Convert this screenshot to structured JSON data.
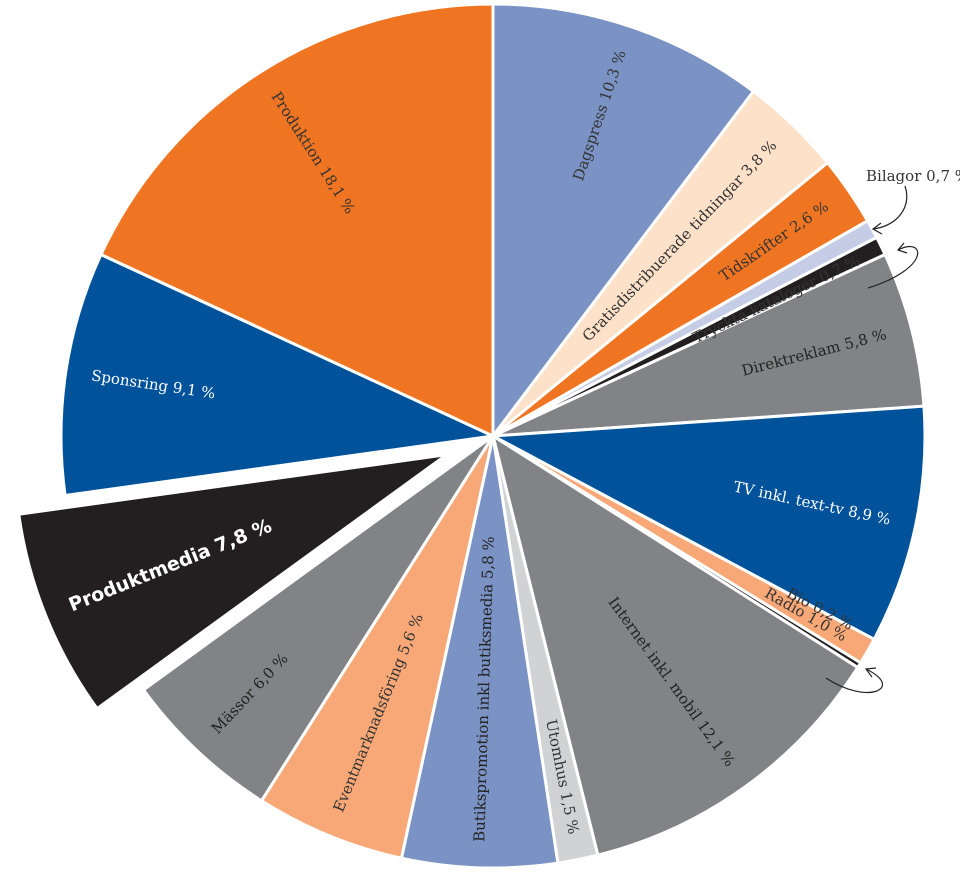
{
  "chart_data": {
    "type": "pie",
    "start_angle_deg": 0,
    "direction": "clockwise",
    "slices": [
      {
        "label": "Dagspress 10,3 %",
        "value": 10.3,
        "color": "#7b93c4",
        "text_color": "#333333",
        "highlight": false,
        "external": false
      },
      {
        "label": "Gratisdistribuerade tidningar 3,8 %",
        "value": 3.8,
        "color": "#fde2c9",
        "text_color": "#333333",
        "highlight": false,
        "external": false
      },
      {
        "label": "Tidskrifter 2,6 %",
        "value": 2.6,
        "color": "#f07522",
        "text_color": "#333333",
        "highlight": false,
        "external": false
      },
      {
        "label": "Bilagor 0,7 %",
        "value": 0.7,
        "color": "#c5cde6",
        "text_color": "#333333",
        "highlight": false,
        "external": true
      },
      {
        "label": "Tryckta kataloger 0,7 %",
        "value": 0.7,
        "color": "#231f20",
        "text_color": "#333333",
        "highlight": false,
        "external": false
      },
      {
        "label": "Direktreklam 5,8 %",
        "value": 5.8,
        "color": "#828386",
        "text_color": "#222222",
        "highlight": false,
        "external": false
      },
      {
        "label": "TV inkl. text-tv 8,9 %",
        "value": 8.9,
        "color": "#00529b",
        "text_color": "#ffffff",
        "highlight": false,
        "external": false
      },
      {
        "label": "Radio 1,0 %",
        "value": 1.0,
        "color": "#f8a877",
        "text_color": "#333333",
        "highlight": false,
        "external": false
      },
      {
        "label": "Bio 0,2 %",
        "value": 0.2,
        "color": "#231f20",
        "text_color": "#333333",
        "highlight": false,
        "external": false
      },
      {
        "label": "Internet inkl. mobil 12,1 %",
        "value": 12.1,
        "color": "#828386",
        "text_color": "#222222",
        "highlight": false,
        "external": false
      },
      {
        "label": "Utomhus 1,5 %",
        "value": 1.5,
        "color": "#d1d2d4",
        "text_color": "#333333",
        "highlight": false,
        "external": false
      },
      {
        "label": "Butikspromotion inkl butiksmedia 5,8 %",
        "value": 5.8,
        "color": "#7b93c4",
        "text_color": "#222222",
        "highlight": false,
        "external": false
      },
      {
        "label": "Eventmarknadsföring 5,6 %",
        "value": 5.6,
        "color": "#f8a877",
        "text_color": "#333333",
        "highlight": false,
        "external": false
      },
      {
        "label": "Mässor 6,0 %",
        "value": 6.0,
        "color": "#828386",
        "text_color": "#222222",
        "highlight": false,
        "external": false
      },
      {
        "label": "Produktmedia 7,8 %",
        "value": 7.8,
        "color": "#231f20",
        "text_color": "#ffffff",
        "highlight": true,
        "external": false
      },
      {
        "label": "Sponsring 9,1 %",
        "value": 9.1,
        "color": "#00529b",
        "text_color": "#ffffff",
        "highlight": false,
        "external": false
      },
      {
        "label": "Produktion 18,1 %",
        "value": 18.1,
        "color": "#f07522",
        "text_color": "#333333",
        "highlight": false,
        "external": false
      }
    ]
  }
}
